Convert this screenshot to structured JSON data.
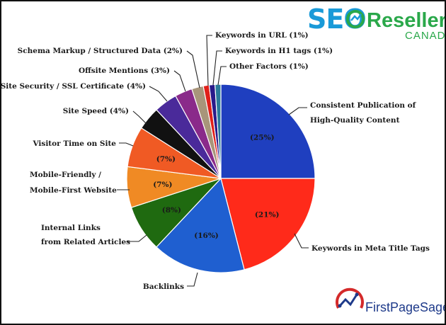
{
  "chart_data": {
    "type": "pie",
    "title": "",
    "slices": [
      {
        "label": "Consistent Publication of High-Quality Content",
        "value": 25,
        "pct_label": "(25%)",
        "color": "#1f3fbf"
      },
      {
        "label": "Keywords in Meta Title Tags",
        "value": 21,
        "pct_label": "(21%)",
        "color": "#ff2a1a"
      },
      {
        "label": "Backlinks",
        "value": 16,
        "pct_label": "(16%)",
        "color": "#1f5fd0"
      },
      {
        "label": "Internal Links from Related Articles",
        "value": 8,
        "pct_label": "(8%)",
        "color": "#1f6a10"
      },
      {
        "label": "Mobile-Friendly / Mobile-First Website",
        "value": 7,
        "pct_label": "(7%)",
        "color": "#f08a24"
      },
      {
        "label": "Visitor Time on Site",
        "value": 7,
        "pct_label": "(7%)",
        "color": "#f05a24"
      },
      {
        "label": "Site Speed",
        "value": 4,
        "pct_label": "(4%)",
        "color": "#111111"
      },
      {
        "label": "Site Security / SSL Certificate",
        "value": 4,
        "pct_label": "(4%)",
        "color": "#4a2a9a"
      },
      {
        "label": "Offsite Mentions",
        "value": 3,
        "pct_label": "(3%)",
        "color": "#8a2a8a"
      },
      {
        "label": "Schema Markup / Structured Data",
        "value": 2,
        "pct_label": "(2%)",
        "color": "#a8957a"
      },
      {
        "label": "Keywords in URL",
        "value": 1,
        "pct_label": "(1%)",
        "color": "#e0201a"
      },
      {
        "label": "Keywords in H1 tags",
        "value": 1,
        "pct_label": "(1%)",
        "color": "#2a1a8a"
      },
      {
        "label": "Other Factors",
        "value": 1,
        "pct_label": "(1%)",
        "color": "#2a7a9a"
      }
    ],
    "legend": "none"
  },
  "labels": {
    "consistent": [
      "Consistent Publication of",
      "High-Quality Content"
    ],
    "meta_title": "Keywords in Meta Title Tags",
    "backlinks": "Backlinks",
    "internal": [
      "Internal Links",
      "from Related Articles"
    ],
    "mobile": [
      "Mobile-Friendly /",
      "Mobile-First Website"
    ],
    "visitor": "Visitor Time on Site",
    "speed": "Site Speed (4%)",
    "security": "Site Security / SSL Certificate (4%)",
    "offsite": "Offsite Mentions (3%)",
    "schema": "Schema Markup / Structured Data (2%)",
    "url": "Keywords in URL (1%)",
    "h1": "Keywords in H1 tags (1%)",
    "other": "Other Factors (1%)"
  },
  "logos": {
    "seo_resellers": {
      "seo": "SEO",
      "resellers": "Resellers",
      "canada": "CANADA",
      "color_blue": "#1a9ad8",
      "color_green": "#2aa84a"
    },
    "first_page_sage": {
      "text": "FirstPageSage",
      "color": "#1e3a8a",
      "accent": "#d42a2a"
    }
  }
}
